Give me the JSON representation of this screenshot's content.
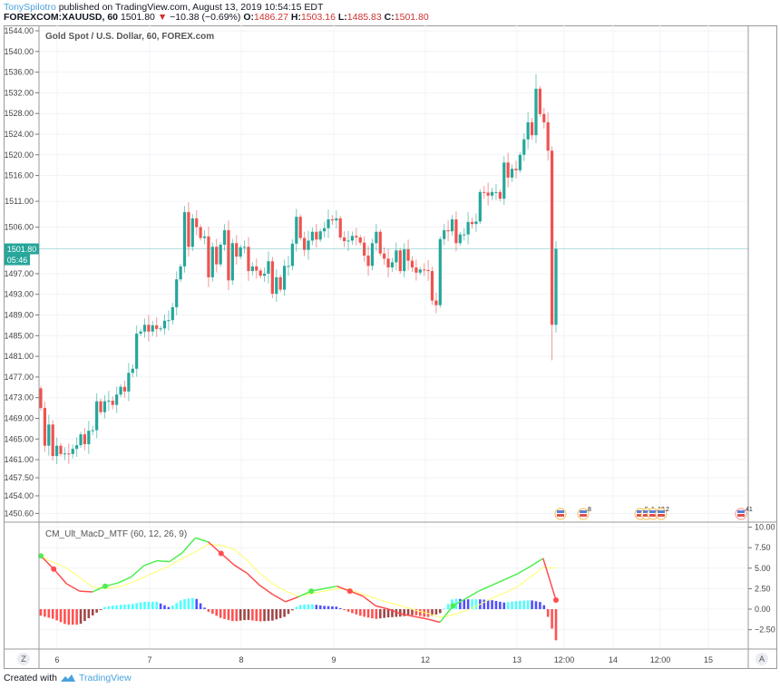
{
  "header": {
    "user": "TonySpilotro",
    "published": " published on TradingView.com, August 13, 2019 10:54:15 EDT",
    "symbol": "FOREXCOM:XAUUSD, 60",
    "last": "1501.80",
    "change": "−10.38 (−0.69%)",
    "o_label": "O:",
    "o": "1486.27",
    "h_label": "H:",
    "h": "1503.16",
    "l_label": "L:",
    "l": "1485.83",
    "c_label": "C:",
    "c": "1501.80"
  },
  "colors": {
    "up": "#26a69a",
    "down": "#ef5350",
    "macd_up": "#4cf04c",
    "macd_down": "#ff4d4d",
    "signal": "#ffff66",
    "hist_pos_rising": "#4dffff",
    "hist_pos_falling": "#5050ff",
    "hist_neg_falling": "#ff5252",
    "hist_neg_rising": "#a04848"
  },
  "price_pane": {
    "title": "Gold Spot / U.S. Dollar, 60, FOREX.com",
    "last_price_badge": "1501.80",
    "countdown_badge": "05:46",
    "events": [
      {
        "icon": "us-flag-icon",
        "label": ""
      },
      {
        "icon": "us-flag-icon",
        "label": "8"
      },
      {
        "icon": "us-flag-icon",
        "label": "5"
      },
      {
        "icon": "us-flag-icon",
        "label": "1"
      },
      {
        "icon": "us-flag-icon",
        "label": "12"
      },
      {
        "icon": "us-flag-icon",
        "label": "2"
      },
      {
        "icon": "us-flag-icon",
        "label": "41"
      }
    ]
  },
  "indicator_pane": {
    "title": "CM_Ult_MacD_MTF (60, 12, 26, 9)"
  },
  "time_axis": {
    "corner_left": "Z",
    "corner_right": "A"
  },
  "footer": {
    "created_with": "Created with",
    "brand": "TradingView"
  },
  "chart_data": [
    {
      "type": "candlestick",
      "title": "Gold Spot / U.S. Dollar, 60, FOREX.com",
      "interval": "60",
      "first_open": 1474.8,
      "closes": [
        1471,
        1463.7,
        1467.8,
        1461.7,
        1463.7,
        1462.1,
        1462.2,
        1462.1,
        1463.1,
        1463.8,
        1465.9,
        1464,
        1466.6,
        1466.7,
        1472.3,
        1470.2,
        1472.3,
        1472.4,
        1471.6,
        1473.6,
        1475.1,
        1474.2,
        1477.8,
        1478.6,
        1485.4,
        1485.8,
        1487.1,
        1485.8,
        1487,
        1486.3,
        1486.4,
        1487.9,
        1488,
        1490.5,
        1495.9,
        1498.4,
        1508.9,
        1502.2,
        1507.7,
        1506,
        1503.9,
        1504.2,
        1496.3,
        1502.2,
        1498.8,
        1502.6,
        1505.4,
        1495.7,
        1502.9,
        1500.3,
        1502.1,
        1502.2,
        1497.5,
        1498.4,
        1497.6,
        1496.6,
        1497,
        1499.4,
        1493.1,
        1496.3,
        1493.9,
        1498.5,
        1498.5,
        1502.8,
        1508.0,
        1503.9,
        1501.6,
        1503.4,
        1505.1,
        1503.6,
        1505.2,
        1505.8,
        1507.5,
        1507.3,
        1507.7,
        1504,
        1503.3,
        1503.4,
        1504.3,
        1504,
        1503,
        1500.5,
        1498.5,
        1502.9,
        1505.1,
        1500.9,
        1499.9,
        1498.2,
        1499.2,
        1501.5,
        1497.5,
        1501.7,
        1499.5,
        1498.2,
        1497.2,
        1497.8,
        1497.7,
        1497.5,
        1491.8,
        1490.9,
        1503.7,
        1505.4,
        1505.2,
        1507.5,
        1502.9,
        1504.6,
        1504.6,
        1507,
        1506.6,
        1507.1,
        1512.8,
        1512.7,
        1512.1,
        1512.8,
        1512.8,
        1511.5,
        1518.5,
        1515.6,
        1517.3,
        1517,
        1520,
        1523,
        1526.3,
        1523.8,
        1532.8,
        1527.9,
        1526.3,
        1520.8,
        1487.1,
        1501.8
      ],
      "session_high": 1535.6,
      "session_low_last_bars": 1480.2,
      "y_ticks": [
        "1544.00",
        "1540.00",
        "1536.00",
        "1532.00",
        "1528.00",
        "1524.00",
        "1520.00",
        "1516.00",
        "1511.00",
        "1506.00",
        "1497.00",
        "1493.00",
        "1489.00",
        "1485.00",
        "1481.00",
        "1477.00",
        "1473.00",
        "1469.00",
        "1465.00",
        "1461.00",
        "1457.50",
        "1454.00",
        "1450.60"
      ],
      "ylim": [
        1450.6,
        1544
      ],
      "x_ticks": [
        "6",
        "7",
        "8",
        "9",
        "12",
        "13",
        "12:00",
        "14",
        "12:00",
        "15"
      ],
      "grid": true,
      "last_price": 1501.8
    },
    {
      "type": "line+bar",
      "title": "CM_Ult_MacD_MTF (60, 12, 26, 9)",
      "macd": [
        6.5,
        4.9,
        3.1,
        2.2,
        2.1,
        2.8,
        3.2,
        3.9,
        5.3,
        5.9,
        5.8,
        6.9,
        8.7,
        8.2,
        6.8,
        5.4,
        4.4,
        2.9,
        1.8,
        0.9,
        1.5,
        2.2,
        2.5,
        2.8,
        2.2,
        1.6,
        0.4,
        0,
        -0.6,
        -0.9,
        -1.2,
        -1.6,
        0.4,
        1.3,
        2.2,
        2.9,
        3.6,
        4.3,
        5.2,
        6.2,
        1.1
      ],
      "signal": [
        6.4,
        5.7,
        5.0,
        3.9,
        2.7,
        2.5,
        2.7,
        3.2,
        3.9,
        4.6,
        5.3,
        6.2,
        7.0,
        7.9,
        7.8,
        7.3,
        6.0,
        4.4,
        3.1,
        2.2,
        1.6,
        1.9,
        2.2,
        2.5,
        2.4,
        1.8,
        1.3,
        0.8,
        0.4,
        -0.1,
        -0.5,
        -1.0,
        -0.7,
        -0.2,
        0.5,
        1.3,
        2.0,
        2.7,
        3.9,
        5.1,
        5.0
      ],
      "histogram": [
        -0.8,
        -1.2,
        -1.9,
        -1.9,
        -0.8,
        0.3,
        0.5,
        0.6,
        0.9,
        0.9,
        0.2,
        1.2,
        1.4,
        -0.3,
        -1.1,
        -1.5,
        -1.3,
        -1.5,
        -1.4,
        -0.9,
        0.5,
        0.6,
        0.4,
        0.3,
        -0.4,
        -0.9,
        -1.2,
        -1.0,
        -0.9,
        -0.7,
        -1.0,
        -0.5,
        1.3,
        1.2,
        1.2,
        1.1,
        0.8,
        1.0,
        1.1,
        0.8,
        -3.8
      ],
      "y_ticks": [
        "10.00",
        "7.50",
        "5.00",
        "2.50",
        "0.00",
        "−2.50"
      ],
      "y_tick_values": [
        10,
        7.5,
        5,
        2.5,
        0,
        -2.5
      ],
      "ylim": [
        -3.9,
        10.6
      ],
      "grid": true
    }
  ]
}
